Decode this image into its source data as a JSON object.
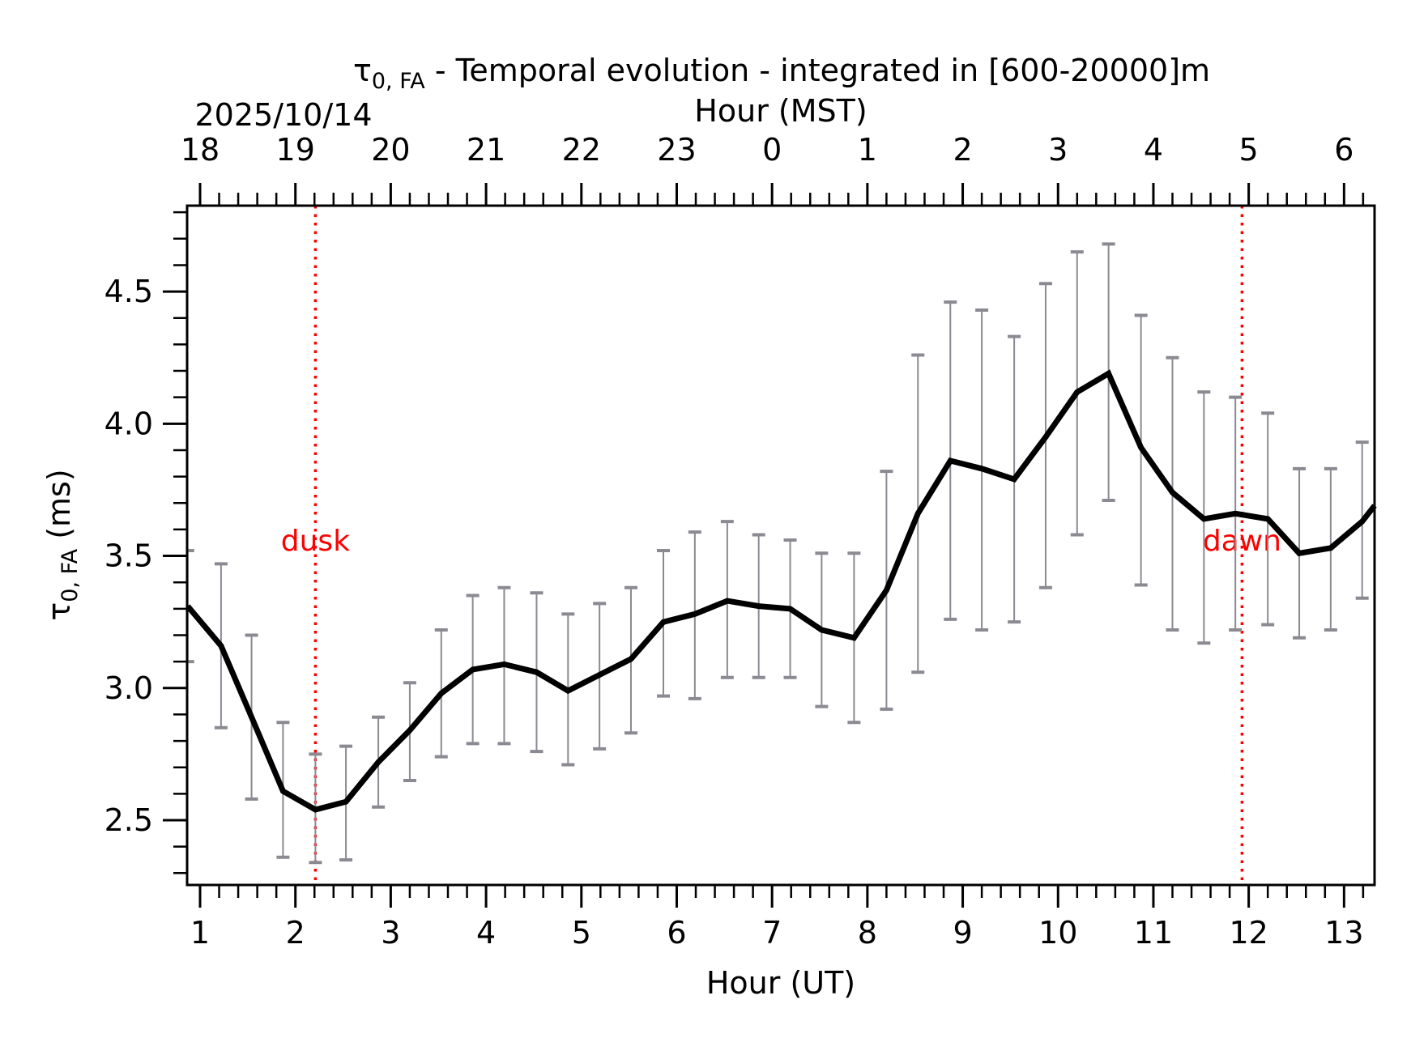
{
  "chart_data": {
    "type": "line",
    "title_symbol": "τ",
    "title_subscript": "0, FA",
    "title_rest": " - Temporal evolution - integrated in [600-20000]m",
    "date_label": "2025/10/14",
    "xlabel": "Hour (UT)",
    "xlabel_top": "Hour (MST)",
    "ylabel_symbol": "τ",
    "ylabel_subscript": "0, FA",
    "ylabel_rest": " (ms)",
    "xlim": [
      0.864,
      13.32
    ],
    "ylim": [
      2.255,
      4.825
    ],
    "x_ticks": [
      1,
      2,
      3,
      4,
      5,
      6,
      7,
      8,
      9,
      10,
      11,
      12,
      13
    ],
    "x_tick_labels": [
      "1",
      "2",
      "3",
      "4",
      "5",
      "6",
      "7",
      "8",
      "9",
      "10",
      "11",
      "12",
      "13"
    ],
    "x_top_tick_labels": [
      "18",
      "19",
      "20",
      "21",
      "22",
      "23",
      "0",
      "1",
      "2",
      "3",
      "4",
      "5",
      "6"
    ],
    "y_ticks": [
      2.5,
      3.0,
      3.5,
      4.0,
      4.5
    ],
    "y_tick_labels": [
      "2.5",
      "3.0",
      "3.5",
      "4.0",
      "4.5"
    ],
    "x_minor_step": 0.2,
    "y_minor_step": 0.1,
    "grid": false,
    "series": [
      {
        "name": "tau0_FA",
        "color": "#000000",
        "x": [
          0.87,
          1.22,
          1.54,
          1.87,
          2.21,
          2.53,
          2.87,
          3.2,
          3.53,
          3.86,
          4.19,
          4.53,
          4.86,
          5.19,
          5.52,
          5.86,
          6.19,
          6.53,
          6.86,
          7.19,
          7.52,
          7.86,
          8.2,
          8.53,
          8.87,
          9.2,
          9.54,
          9.87,
          10.2,
          10.53,
          10.87,
          11.2,
          11.53,
          11.86,
          12.2,
          12.53,
          12.86,
          13.19,
          13.32
        ],
        "y": [
          3.31,
          3.16,
          2.89,
          2.61,
          2.54,
          2.57,
          2.72,
          2.84,
          2.98,
          3.07,
          3.09,
          3.06,
          2.99,
          3.05,
          3.11,
          3.25,
          3.28,
          3.33,
          3.31,
          3.3,
          3.22,
          3.19,
          3.37,
          3.66,
          3.86,
          3.83,
          3.79,
          3.95,
          4.12,
          4.19,
          3.91,
          3.74,
          3.64,
          3.66,
          3.64,
          3.51,
          3.53,
          3.63,
          3.69
        ],
        "err_upper": [
          3.52,
          3.47,
          3.2,
          2.87,
          2.75,
          2.78,
          2.89,
          3.02,
          3.22,
          3.35,
          3.38,
          3.36,
          3.28,
          3.32,
          3.38,
          3.52,
          3.59,
          3.63,
          3.58,
          3.56,
          3.51,
          3.51,
          3.82,
          4.26,
          4.46,
          4.43,
          4.33,
          4.53,
          4.65,
          4.68,
          4.41,
          4.25,
          4.12,
          4.1,
          4.04,
          3.83,
          3.83,
          3.93,
          null
        ],
        "err_lower": [
          3.1,
          2.85,
          2.58,
          2.36,
          2.34,
          2.35,
          2.55,
          2.65,
          2.74,
          2.79,
          2.79,
          2.76,
          2.71,
          2.77,
          2.83,
          2.97,
          2.96,
          3.04,
          3.04,
          3.04,
          2.93,
          2.87,
          2.92,
          3.06,
          3.26,
          3.22,
          3.25,
          3.38,
          3.58,
          3.71,
          3.39,
          3.22,
          3.17,
          3.22,
          3.24,
          3.19,
          3.22,
          3.34,
          null
        ],
        "err_color": "#8a8a92"
      }
    ],
    "annotations": [
      {
        "label": "dusk",
        "x": 2.21,
        "text_y": 3.52,
        "color": "#ff0000",
        "style": "dotted"
      },
      {
        "label": "dawn",
        "x": 11.93,
        "text_y": 3.52,
        "color": "#ff0000",
        "style": "dotted"
      }
    ]
  }
}
